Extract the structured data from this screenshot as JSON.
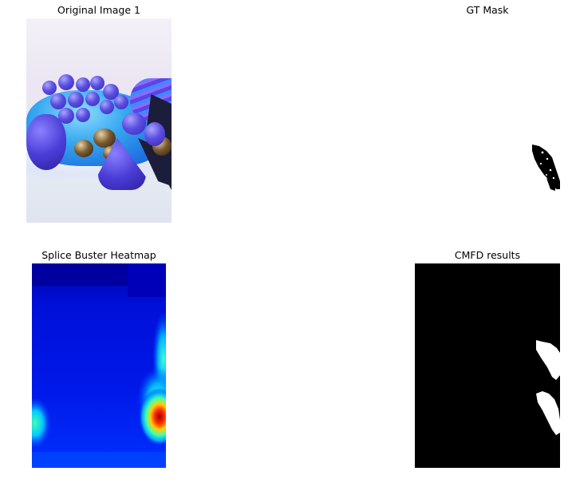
{
  "panels": [
    {
      "title": "Original Image 1"
    },
    {
      "title": "GT Mask"
    },
    {
      "title": "Splice Buster Heatmap"
    },
    {
      "title": "CMFD results"
    }
  ],
  "colors": {
    "background": "#ffffff",
    "mask_background": "#ffffff",
    "mask_region": "#000000",
    "cmfd_background": "#000000",
    "cmfd_region": "#ffffff",
    "heatmap_low": "#0000a0",
    "heatmap_mid": "#00ffff",
    "heatmap_high": "#8b0000"
  },
  "heatmap": {
    "colormap": "jet"
  }
}
